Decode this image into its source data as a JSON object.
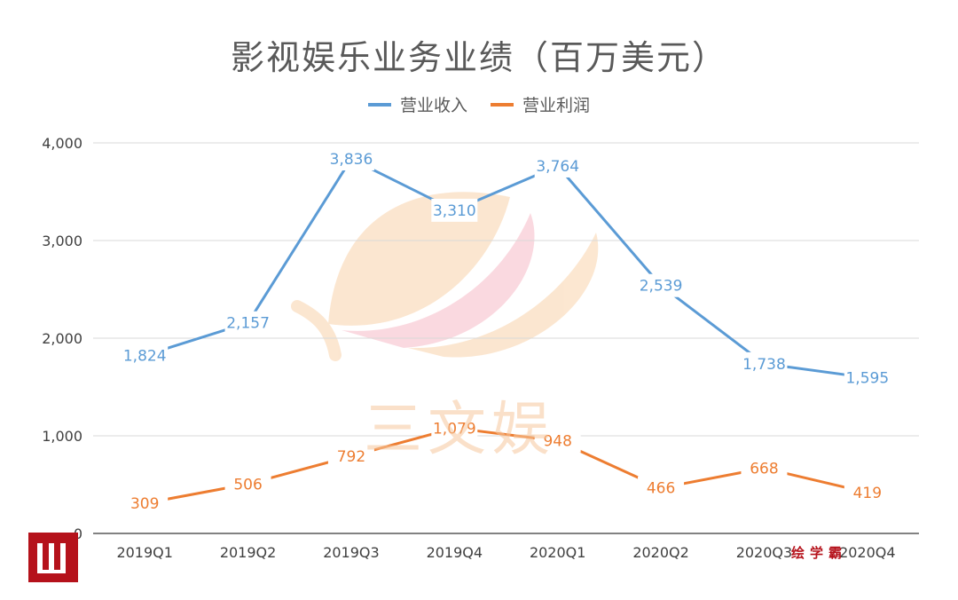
{
  "chart_data": {
    "type": "line",
    "title": "影视娱乐业务业绩（百万美元）",
    "categories": [
      "2019Q1",
      "2019Q2",
      "2019Q3",
      "2019Q4",
      "2020Q1",
      "2020Q2",
      "2020Q3",
      "2020Q4"
    ],
    "series": [
      {
        "name": "营业收入",
        "values": [
          1824,
          2157,
          3836,
          3310,
          3764,
          2539,
          1738,
          1595
        ],
        "labels": [
          "1,824",
          "2,157",
          "3,836",
          "3,310",
          "3,764",
          "2,539",
          "1,738",
          "1,595"
        ],
        "color": "#5b9bd5"
      },
      {
        "name": "营业利润",
        "values": [
          309,
          506,
          792,
          1079,
          948,
          466,
          668,
          419
        ],
        "labels": [
          "309",
          "506",
          "792",
          "1,079",
          "948",
          "466",
          "668",
          "419"
        ],
        "color": "#ed7d31"
      }
    ],
    "ylim": [
      0,
      4000
    ],
    "yticks": [
      0,
      1000,
      2000,
      3000,
      4000
    ],
    "ytick_labels": [
      "0",
      "1,000",
      "2,000",
      "3,000",
      "4,000"
    ],
    "grid": true,
    "legend": "top-center"
  },
  "watermark": {
    "text": "三文娱",
    "color": "#f7c89e"
  },
  "brand": {
    "text": "绘学霸",
    "color": "#b5121b"
  }
}
